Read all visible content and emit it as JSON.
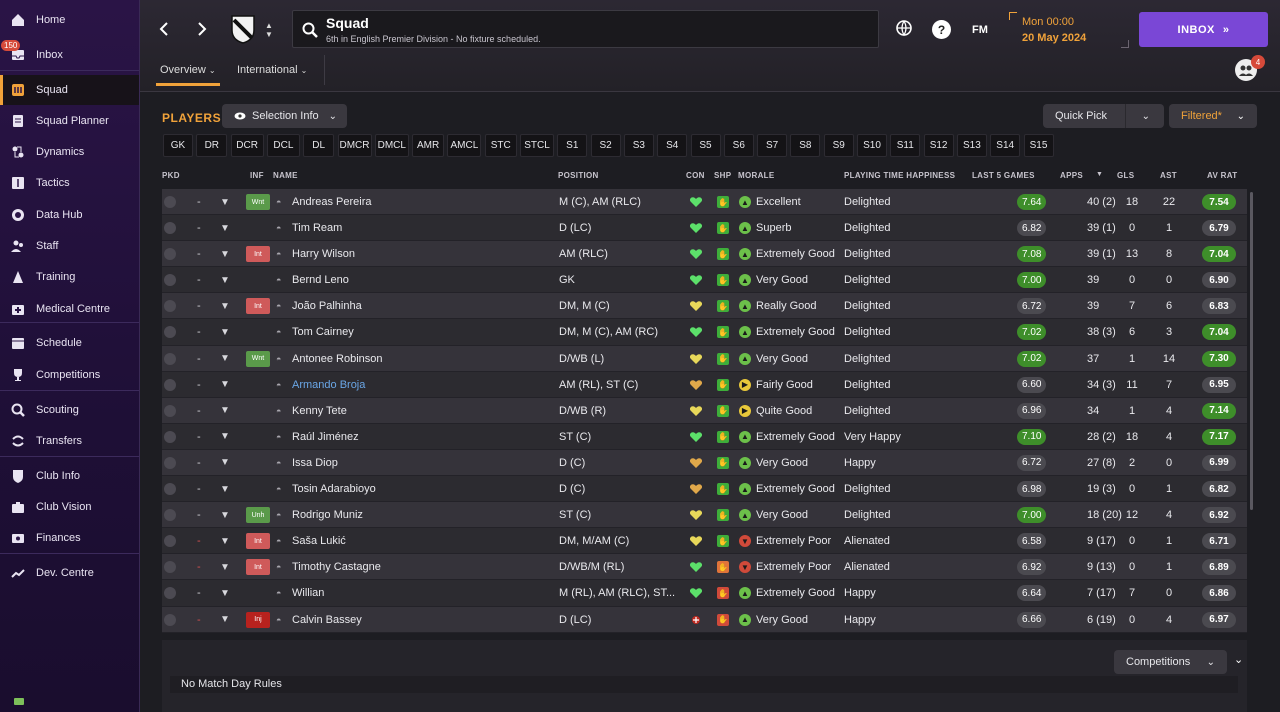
{
  "sidebar": {
    "items": [
      {
        "label": "Home",
        "icon": "home-icon"
      },
      {
        "label": "Inbox",
        "icon": "inbox-icon",
        "badge": "150"
      },
      {
        "label": "Squad",
        "icon": "squad-icon"
      },
      {
        "label": "Squad Planner",
        "icon": "planner-icon"
      },
      {
        "label": "Dynamics",
        "icon": "dynamics-icon"
      },
      {
        "label": "Tactics",
        "icon": "tactics-icon"
      },
      {
        "label": "Data Hub",
        "icon": "data-hub-icon"
      },
      {
        "label": "Staff",
        "icon": "staff-icon"
      },
      {
        "label": "Training",
        "icon": "training-icon"
      },
      {
        "label": "Medical Centre",
        "icon": "medical-icon"
      },
      {
        "label": "Schedule",
        "icon": "schedule-icon"
      },
      {
        "label": "Competitions",
        "icon": "trophy-icon"
      },
      {
        "label": "Scouting",
        "icon": "scouting-icon"
      },
      {
        "label": "Transfers",
        "icon": "transfers-icon"
      },
      {
        "label": "Club Info",
        "icon": "club-info-icon"
      },
      {
        "label": "Club Vision",
        "icon": "club-vision-icon"
      },
      {
        "label": "Finances",
        "icon": "finances-icon"
      },
      {
        "label": "Dev. Centre",
        "icon": "dev-centre-icon"
      }
    ]
  },
  "header": {
    "title": "Squad",
    "subtitle": "6th in English Premier Division - No fixture scheduled.",
    "time": "Mon 00:00",
    "date": "20 May 2024",
    "inbox_label": "INBOX",
    "fm_label": "FM",
    "help_label": "?",
    "avatar_badge": "4",
    "tabs": [
      "Overview",
      "International"
    ]
  },
  "players_label": "PLAYERS",
  "selection_info": "Selection Info",
  "quick_pick": "Quick Pick",
  "filtered": "Filtered*",
  "positions": [
    "GK",
    "DR",
    "DCR",
    "DCL",
    "DL",
    "DMCR",
    "DMCL",
    "AMR",
    "AMCL",
    "STC",
    "STCL",
    "S1",
    "S2",
    "S3",
    "S4",
    "S5",
    "S6",
    "S7",
    "S8",
    "S9",
    "S10",
    "S11",
    "S12",
    "S13",
    "S14",
    "S15"
  ],
  "columns": [
    "PKD",
    "INF",
    "NAME",
    "POSITION",
    "CON",
    "SHP",
    "MORALE",
    "PLAYING TIME HAPPINESS",
    "LAST 5 GAMES",
    "APPS",
    "GLS",
    "AST",
    "AV RAT"
  ],
  "players": [
    {
      "inf": "Wnt",
      "inf_class": "wnt",
      "name": "Andreas Pereira",
      "position": "M (C), AM (RLC)",
      "con": "green",
      "shp": "green",
      "morale_ico": "green",
      "morale": "Excellent",
      "pth": "Delighted",
      "bars": [
        "#e0dcc8",
        "#5ac83a",
        "#5ac83a",
        "#5ac83a",
        "#5ac83a"
      ],
      "last5": "7.64",
      "last5_hi": true,
      "apps": "40 (2)",
      "gls": "18",
      "ast": "22",
      "avrat": "7.54",
      "avrat_hi": true,
      "dash": "-"
    },
    {
      "inf": "",
      "inf_class": "",
      "name": "Tim Ream",
      "position": "D (LC)",
      "con": "green",
      "shp": "green",
      "morale_ico": "green",
      "morale": "Superb",
      "pth": "Delighted",
      "bars": [
        "#e0dcc8",
        "#e0dcc8",
        "#e0dcc8",
        "#e0dcc8",
        "#e0dcc8"
      ],
      "last5": "6.82",
      "last5_hi": false,
      "apps": "39 (1)",
      "gls": "0",
      "ast": "1",
      "avrat": "6.79",
      "avrat_hi": false,
      "dash": "-"
    },
    {
      "inf": "Int",
      "inf_class": "int",
      "name": "Harry Wilson",
      "position": "AM (RLC)",
      "con": "green",
      "shp": "green",
      "morale_ico": "green",
      "morale": "Extremely Good",
      "pth": "Delighted",
      "bars": [
        "#e0dcc8",
        "#5ac83a",
        "#e0dcc8",
        "#e0dcc8",
        "#e0dcc8"
      ],
      "last5": "7.08",
      "last5_hi": true,
      "apps": "39 (1)",
      "gls": "13",
      "ast": "8",
      "avrat": "7.04",
      "avrat_hi": true,
      "dash": "-"
    },
    {
      "inf": "",
      "inf_class": "",
      "name": "Bernd Leno",
      "position": "GK",
      "con": "green",
      "shp": "green",
      "morale_ico": "green",
      "morale": "Very Good",
      "pth": "Delighted",
      "bars": [
        "#5ac83a",
        "#e0dcc8",
        "#e0dcc8",
        "#5ac83a",
        "#5ac83a"
      ],
      "last5": "7.00",
      "last5_hi": true,
      "apps": "39",
      "gls": "0",
      "ast": "0",
      "avrat": "6.90",
      "avrat_hi": false,
      "dash": "-"
    },
    {
      "inf": "Int",
      "inf_class": "int",
      "name": "João Palhinha",
      "position": "DM, M (C)",
      "con": "yellow",
      "shp": "green",
      "morale_ico": "green",
      "morale": "Really Good",
      "pth": "Delighted",
      "bars": [
        "#e0dcc8",
        "#e0dcc8",
        "#e0dcc8",
        "#e0dcc8",
        "#e0dcc8"
      ],
      "last5": "6.72",
      "last5_hi": false,
      "apps": "39",
      "gls": "7",
      "ast": "6",
      "avrat": "6.83",
      "avrat_hi": false,
      "dash": "-"
    },
    {
      "inf": "",
      "inf_class": "",
      "name": "Tom Cairney",
      "position": "DM, M (C), AM (RC)",
      "con": "green",
      "shp": "green",
      "morale_ico": "green",
      "morale": "Extremely Good",
      "pth": "Delighted",
      "bars": [
        "#5ac83a",
        "#e0dcc8",
        "#e0dcc8",
        "#e0dcc8",
        "#5ac83a"
      ],
      "last5": "7.02",
      "last5_hi": true,
      "apps": "38 (3)",
      "gls": "6",
      "ast": "3",
      "avrat": "7.04",
      "avrat_hi": true,
      "dash": "-"
    },
    {
      "inf": "Wnt",
      "inf_class": "wnt",
      "name": "Antonee Robinson",
      "position": "D/WB (L)",
      "con": "yellow",
      "shp": "green",
      "morale_ico": "green",
      "morale": "Very Good",
      "pth": "Delighted",
      "bars": [
        "#e0dcc8",
        "#5ac83a",
        "#e0dcc8",
        "#e0dcc8",
        "#5ac83a"
      ],
      "last5": "7.02",
      "last5_hi": true,
      "apps": "37",
      "gls": "1",
      "ast": "14",
      "avrat": "7.30",
      "avrat_hi": true,
      "dash": "-"
    },
    {
      "inf": "",
      "inf_class": "",
      "name": "Armando Broja",
      "link": true,
      "position": "AM (RL), ST (C)",
      "con": "orange",
      "shp": "green",
      "morale_ico": "yellow",
      "morale": "Fairly Good",
      "pth": "Delighted",
      "bars": [
        "#e0dcc8",
        "#e0dcc8",
        "#e0dcc8",
        "#e0dcc8",
        "#e0dcc8"
      ],
      "last5": "6.60",
      "last5_hi": false,
      "apps": "34 (3)",
      "gls": "11",
      "ast": "7",
      "avrat": "6.95",
      "avrat_hi": false,
      "dash": "-"
    },
    {
      "inf": "",
      "inf_class": "",
      "name": "Kenny Tete",
      "position": "D/WB (R)",
      "con": "yellow",
      "shp": "green",
      "morale_ico": "yellow",
      "morale": "Quite Good",
      "pth": "Delighted",
      "bars": [
        "#e0dcc8",
        "#e0dcc8",
        "#e0dcc8",
        "#e0dcc8",
        "#e0dcc8"
      ],
      "last5": "6.96",
      "last5_hi": false,
      "apps": "34",
      "gls": "1",
      "ast": "4",
      "avrat": "7.14",
      "avrat_hi": true,
      "dash": "-"
    },
    {
      "inf": "",
      "inf_class": "",
      "name": "Raúl Jiménez",
      "position": "ST (C)",
      "con": "green",
      "shp": "green",
      "morale_ico": "green",
      "morale": "Extremely Good",
      "pth": "Very Happy",
      "bars": [
        "#e0dcc8",
        "#e0dcc8",
        "#5ac83a",
        "#e0dcc8",
        "#e0dcc8"
      ],
      "last5": "7.10",
      "last5_hi": true,
      "apps": "28 (2)",
      "gls": "18",
      "ast": "4",
      "avrat": "7.17",
      "avrat_hi": true,
      "dash": "-"
    },
    {
      "inf": "",
      "inf_class": "",
      "name": "Issa Diop",
      "position": "D (C)",
      "con": "orange",
      "shp": "green",
      "morale_ico": "green",
      "morale": "Very Good",
      "pth": "Happy",
      "bars": [
        "#e0dcc8",
        "#e0dcc8",
        "#e0dcc8",
        "#e0dcc8",
        "#e0dcc8"
      ],
      "last5": "6.72",
      "last5_hi": false,
      "apps": "27 (8)",
      "gls": "2",
      "ast": "0",
      "avrat": "6.99",
      "avrat_hi": false,
      "dash": "-"
    },
    {
      "inf": "",
      "inf_class": "",
      "name": "Tosin Adarabioyo",
      "position": "D (C)",
      "con": "orange",
      "shp": "green",
      "morale_ico": "green",
      "morale": "Extremely Good",
      "pth": "Delighted",
      "bars": [
        "#e0dcc8",
        "#e0dcc8",
        "#e0dcc8",
        "#e0dcc8",
        "#e0dcc8"
      ],
      "last5": "6.98",
      "last5_hi": false,
      "apps": "19 (3)",
      "gls": "0",
      "ast": "1",
      "avrat": "6.82",
      "avrat_hi": false,
      "dash": "-"
    },
    {
      "inf": "Unh",
      "inf_class": "unh",
      "name": "Rodrigo Muniz",
      "position": "ST (C)",
      "con": "yellow",
      "shp": "green",
      "morale_ico": "green",
      "morale": "Very Good",
      "pth": "Delighted",
      "bars": [
        "#e0dcc8",
        "#5ac83a",
        "#e0dcc8",
        "#e0dcc8",
        "#e0dcc8"
      ],
      "last5": "7.00",
      "last5_hi": true,
      "apps": "18 (20)",
      "gls": "12",
      "ast": "4",
      "avrat": "6.92",
      "avrat_hi": false,
      "dash": "-"
    },
    {
      "inf": "Int",
      "inf_class": "int",
      "name": "Saša Lukić",
      "position": "DM, M/AM (C)",
      "con": "yellow",
      "shp": "green",
      "morale_ico": "red",
      "morale": "Extremely Poor",
      "pth": "Alienated",
      "bars": [
        "#e0dcc8",
        "#e0dcc8",
        "#e0dcc8",
        "#e0dcc8",
        "#e0dcc8"
      ],
      "last5": "6.58",
      "last5_hi": false,
      "apps": "9 (17)",
      "gls": "0",
      "ast": "1",
      "avrat": "6.71",
      "avrat_hi": false,
      "dash": "-",
      "dash_red": true
    },
    {
      "inf": "Int",
      "inf_class": "int",
      "name": "Timothy Castagne",
      "position": "D/WB/M (RL)",
      "con": "green",
      "shp": "orange",
      "morale_ico": "red",
      "morale": "Extremely Poor",
      "pth": "Alienated",
      "bars": [
        "#e0dcc8",
        "#e0dcc8",
        "#e0dcc8",
        "#e0dcc8",
        "#e0dcc8"
      ],
      "last5": "6.92",
      "last5_hi": false,
      "apps": "9 (13)",
      "gls": "0",
      "ast": "1",
      "avrat": "6.89",
      "avrat_hi": false,
      "dash": "-",
      "dash_red": true
    },
    {
      "inf": "",
      "inf_class": "",
      "name": "Willian",
      "position": "M (RL), AM (RLC), ST...",
      "con": "green",
      "shp": "red",
      "morale_ico": "green",
      "morale": "Extremely Good",
      "pth": "Happy",
      "bars": [
        "#e0dcc8",
        "#e0dcc8",
        "#e0dcc8",
        "#e0dcc8",
        "#e0dcc8"
      ],
      "last5": "6.64",
      "last5_hi": false,
      "apps": "7 (17)",
      "gls": "7",
      "ast": "0",
      "avrat": "6.86",
      "avrat_hi": false,
      "dash": "-"
    },
    {
      "inf": "Inj",
      "inf_class": "inj",
      "name": "Calvin Bassey",
      "position": "D (LC)",
      "con": "injury",
      "shp": "red",
      "morale_ico": "green",
      "morale": "Very Good",
      "pth": "Happy",
      "bars": [
        "#e0dcc8",
        "#e0dcc8",
        "#e0dcc8",
        "#e0dcc8",
        "#e0dcc8"
      ],
      "last5": "6.66",
      "last5_hi": false,
      "apps": "6 (19)",
      "gls": "0",
      "ast": "4",
      "avrat": "6.97",
      "avrat_hi": false,
      "dash": "-",
      "dash_red": true
    }
  ],
  "footer": {
    "competitions": "Competitions",
    "rules": "No Match Day Rules"
  },
  "colors": {
    "accent": "#f0a23a",
    "inbox": "#7a47d6",
    "good": "#3e8e2a"
  }
}
